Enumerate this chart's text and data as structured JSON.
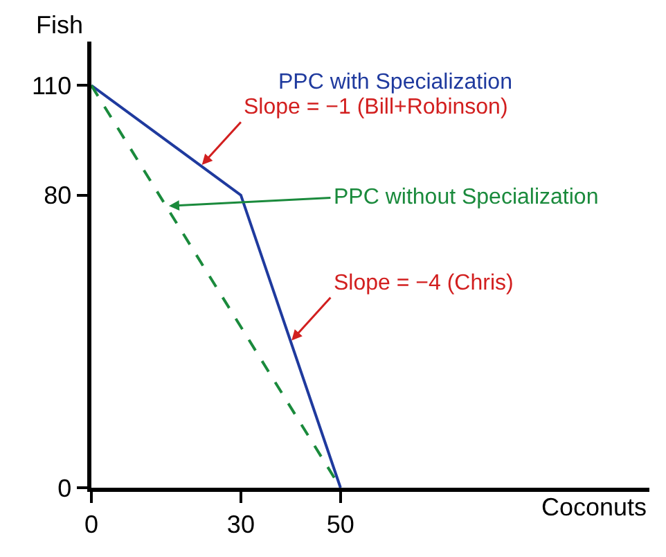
{
  "chart_data": {
    "type": "line",
    "xlabel": "Coconuts",
    "ylabel": "Fish",
    "series": [
      {
        "name": "PPC with Specialization",
        "color": "#1f3a9e",
        "x": [
          0,
          30,
          50
        ],
        "values": [
          110,
          80,
          0
        ],
        "line_style": "solid"
      },
      {
        "name": "PPC without Specialization",
        "color": "#1a8a3c",
        "x": [
          0,
          50
        ],
        "values": [
          110,
          0
        ],
        "line_style": "dashed"
      }
    ],
    "annotations": [
      {
        "text": "Slope = −1 (Bill+Robinson)",
        "x": 22,
        "y": 88
      },
      {
        "text": "Slope = −4 (Chris)",
        "x": 40,
        "y": 40
      }
    ],
    "xlim": [
      0,
      112
    ],
    "ylim": [
      0,
      122
    ],
    "xticks": [
      0,
      30,
      50
    ],
    "yticks": [
      0,
      80,
      110
    ],
    "legend": false,
    "marker": "none"
  }
}
